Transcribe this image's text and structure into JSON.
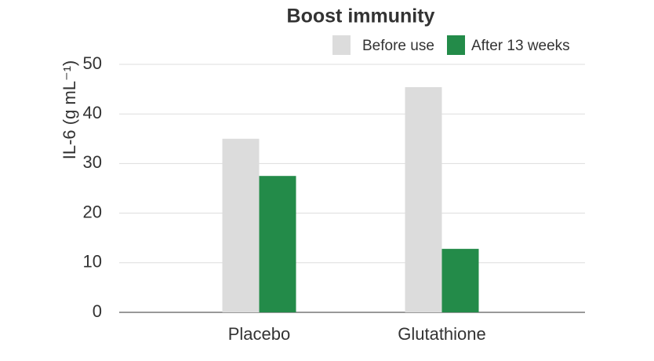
{
  "chart_data": {
    "type": "bar",
    "title": "Boost immunity",
    "y_label": "IL-6 (g mL⁻¹)",
    "categories": [
      "Placebo",
      "Glutathione"
    ],
    "series": [
      {
        "name": "Before use",
        "color": "#dcdcdc",
        "values": [
          35,
          45.4
        ]
      },
      {
        "name": "After 13 weeks",
        "color": "#238b49",
        "values": [
          27.5,
          12.8
        ]
      }
    ],
    "ylim": [
      0,
      50
    ],
    "yticks": [
      0,
      10,
      20,
      30,
      40,
      50
    ],
    "grid": true,
    "legend": "top-right"
  }
}
